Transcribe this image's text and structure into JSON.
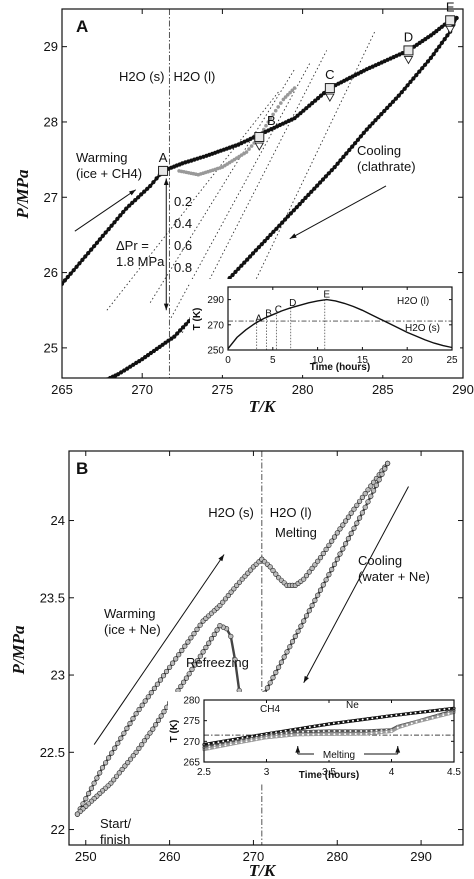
{
  "chart_data": [
    {
      "type": "scatter",
      "panel_label": "A",
      "xlabel": "T/K",
      "ylabel": "P/MPa",
      "xlim": [
        265,
        290
      ],
      "ylim": [
        24.6,
        29.5
      ],
      "xticks": [
        265,
        270,
        275,
        280,
        285,
        290
      ],
      "yticks": [
        25,
        26,
        27,
        28,
        29
      ],
      "phase_line_x": 271.7,
      "phase_labels": [
        "H2O (s)",
        "H2O (l)"
      ],
      "annotations": {
        "warming": [
          "Warming",
          "(ice + CH4)"
        ],
        "cooling": [
          "Cooling",
          "(clathrate)"
        ],
        "delta": [
          "ΔPr =",
          "1.8 MPa"
        ],
        "fractions": [
          "0.2",
          "0.4",
          "0.6",
          "0.8"
        ]
      },
      "points": [
        {
          "label": "A",
          "x": 271.3,
          "y": 27.35
        },
        {
          "label": "B",
          "x": 277.3,
          "y": 27.8
        },
        {
          "label": "C",
          "x": 281.7,
          "y": 28.45
        },
        {
          "label": "D",
          "x": 286.6,
          "y": 28.95
        },
        {
          "label": "E",
          "x": 289.2,
          "y": 29.35
        }
      ],
      "series": [
        {
          "role": "warming",
          "x": [
            265,
            267,
            269,
            270.5,
            271.3,
            272.5,
            274,
            276,
            277.5,
            279.5,
            281.7,
            284,
            286.6,
            288,
            289.2,
            289.6
          ],
          "y": [
            25.85,
            26.35,
            26.85,
            27.15,
            27.35,
            27.45,
            27.55,
            27.7,
            27.85,
            28.05,
            28.45,
            28.7,
            28.95,
            29.15,
            29.35,
            29.38
          ]
        },
        {
          "role": "cooling",
          "x": [
            289.6,
            289.2,
            288,
            286,
            284,
            282,
            280,
            278,
            276,
            274,
            272,
            270,
            268.5,
            267.5
          ],
          "y": [
            29.38,
            29.2,
            28.85,
            28.35,
            27.9,
            27.4,
            26.95,
            26.5,
            26.05,
            25.6,
            25.15,
            24.85,
            24.65,
            24.55
          ]
        },
        {
          "role": "metastable",
          "x": [
            272.3,
            273.5,
            275,
            276.5,
            277.3,
            278,
            278.8,
            279.5
          ],
          "y": [
            27.35,
            27.3,
            27.4,
            27.6,
            27.8,
            28.05,
            28.3,
            28.45
          ]
        }
      ],
      "inset": {
        "xlabel": "Time (hours)",
        "ylabel": "T (K)",
        "xlim": [
          0,
          25
        ],
        "ylim": [
          250,
          300
        ],
        "xticks": [
          0,
          5,
          10,
          15,
          20,
          25
        ],
        "yticks": [
          250,
          270,
          290
        ],
        "phase_line_y": 273,
        "phase_labels": [
          "H2O (l)",
          "H2O (s)"
        ],
        "markers": [
          {
            "label": "A",
            "x": 3.2
          },
          {
            "label": "B",
            "x": 4.3
          },
          {
            "label": "C",
            "x": 5.4
          },
          {
            "label": "D",
            "x": 7.0
          },
          {
            "label": "E",
            "x": 10.8
          }
        ],
        "x": [
          0,
          1,
          2,
          3,
          4,
          5,
          6,
          7,
          8,
          9,
          10,
          11,
          12,
          13,
          14,
          15,
          16,
          17,
          18,
          19,
          20,
          21,
          22,
          23,
          24,
          25
        ],
        "y": [
          251,
          260,
          266,
          271,
          275,
          278,
          281,
          283.5,
          285.5,
          287.5,
          289,
          290,
          289,
          287,
          284.5,
          281.5,
          278,
          274.5,
          271,
          267.5,
          264,
          261,
          258,
          255.5,
          253.5,
          252
        ]
      }
    },
    {
      "type": "scatter",
      "panel_label": "B",
      "xlabel": "T/K",
      "ylabel": "P/MPa",
      "xlim": [
        248,
        295
      ],
      "ylim": [
        21.9,
        24.45
      ],
      "xticks": [
        250,
        260,
        270,
        280,
        290
      ],
      "yticks": [
        22,
        22.5,
        23,
        23.5,
        24
      ],
      "phase_line_x": 271,
      "phase_labels": [
        "H2O (s)",
        "H2O (l)"
      ],
      "annotations": {
        "melting": "Melting",
        "refreezing": "Refreezing",
        "warming": [
          "Warming",
          "(ice + Ne)"
        ],
        "cooling": [
          "Cooling",
          "(water + Ne)"
        ],
        "start": [
          "Start/",
          "finish"
        ]
      },
      "series": [
        {
          "role": "warming",
          "x": [
            249,
            252,
            256,
            260,
            264,
            266,
            268,
            270,
            271
          ],
          "y": [
            22.1,
            22.4,
            22.75,
            23.05,
            23.35,
            23.45,
            23.58,
            23.7,
            23.75
          ]
        },
        {
          "role": "melt_excursion",
          "x": [
            271,
            272,
            273,
            274,
            275,
            276,
            278,
            280,
            283,
            286
          ],
          "y": [
            23.75,
            23.7,
            23.63,
            23.58,
            23.58,
            23.62,
            23.76,
            23.92,
            24.15,
            24.37
          ]
        },
        {
          "role": "cooling",
          "x": [
            286,
            283,
            280,
            277,
            274,
            271,
            269,
            268.3,
            267.8,
            267.3,
            266.8,
            266,
            264,
            262,
            260,
            258,
            256,
            253,
            250,
            249
          ],
          "y": [
            24.37,
            24.05,
            23.75,
            23.45,
            23.15,
            22.85,
            22.7,
            22.9,
            23.1,
            23.25,
            23.3,
            23.32,
            23.15,
            22.98,
            22.82,
            22.65,
            22.5,
            22.3,
            22.15,
            22.1
          ]
        }
      ],
      "inset": {
        "xlabel": "Time (hours)",
        "ylabel": "T (K)",
        "xlim": [
          2.5,
          4.5
        ],
        "ylim": [
          265,
          280
        ],
        "xticks": [
          2.5,
          3,
          3.5,
          4,
          4.5
        ],
        "yticks": [
          265,
          270,
          275,
          280
        ],
        "phase_line_y": 271.5,
        "labels": [
          "CH4",
          "Ne",
          "Melting"
        ],
        "melting_range": [
          3.25,
          4.05
        ],
        "series": [
          {
            "name": "CH4",
            "x": [
              2.5,
              3.0,
              3.5,
              4.0,
              4.5
            ],
            "y": [
              269.2,
              271.8,
              274.2,
              276.2,
              278.0
            ]
          },
          {
            "name": "Ne",
            "x": [
              2.5,
              2.8,
              3.0,
              3.2,
              3.25,
              3.5,
              3.8,
              4.0,
              4.05,
              4.2,
              4.5
            ],
            "y": [
              268.5,
              270.2,
              271.3,
              272.2,
              272.3,
              272.5,
              272.5,
              272.8,
              273.6,
              274.8,
              277.4
            ]
          },
          {
            "name": "",
            "x": [
              2.5,
              2.8,
              3.0,
              3.2,
              3.25,
              3.5,
              3.8,
              4.0,
              4.05,
              4.2,
              4.5
            ],
            "y": [
              268.0,
              269.8,
              270.9,
              271.5,
              271.6,
              271.7,
              271.8,
              272.4,
              273.3,
              274.7,
              277.0
            ]
          }
        ]
      }
    }
  ]
}
